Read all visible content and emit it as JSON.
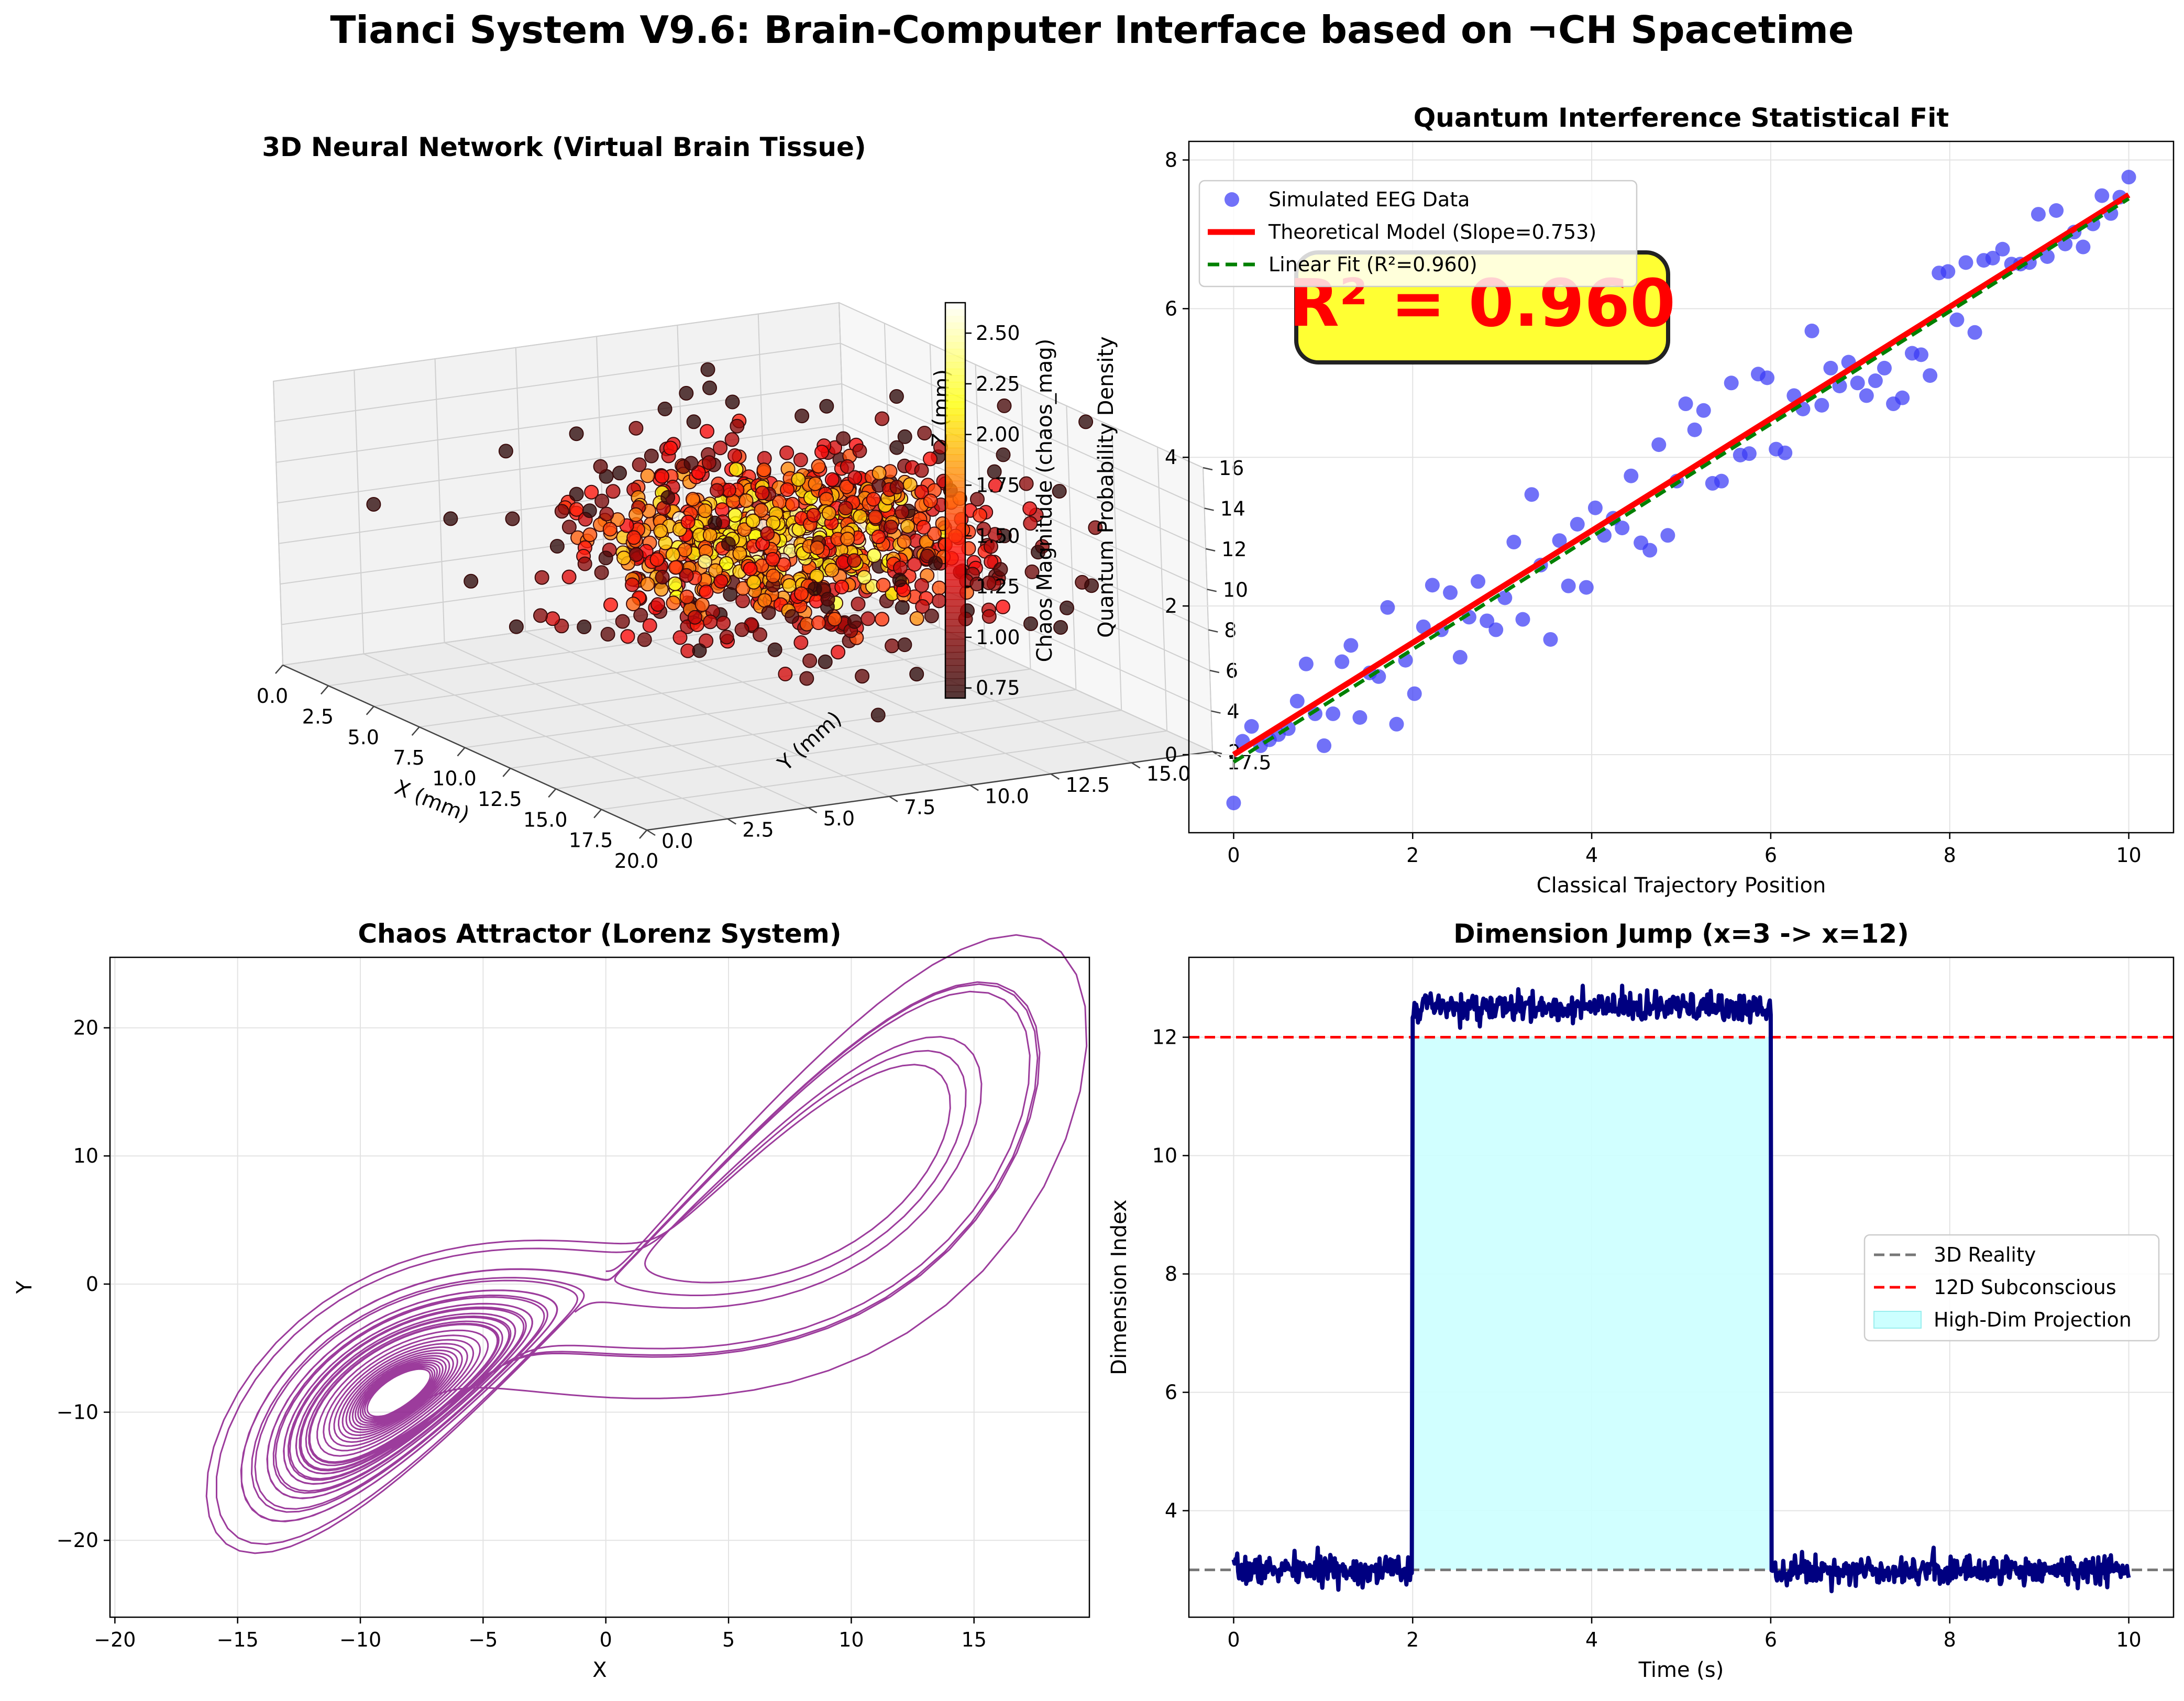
{
  "suptitle": "Tianci System V9.6: Brain-Computer Interface based on ¬CH Spacetime",
  "colors": {
    "scatter_blue": "#3a3af5",
    "fit_red": "#ff0000",
    "fit_green": "#008000",
    "lorenz_purple": "#8b1a8b",
    "signal_navy": "#000080",
    "fill_cyan": "#ccffff",
    "ref_gray": "#777777",
    "ref_red": "#ff0000",
    "badge_yellow": "#ffff33"
  },
  "chart_data": [
    {
      "id": "neural3d",
      "type": "scatter3d",
      "title": "3D Neural Network (Virtual Brain Tissue)",
      "xlabel": "X (mm)",
      "ylabel": "Y (mm)",
      "zlabel": "Z (mm)",
      "xlim": [
        0,
        20
      ],
      "ylim": [
        0,
        17.5
      ],
      "zlim": [
        2,
        16
      ],
      "xticks": [
        "0.0",
        "2.5",
        "5.0",
        "7.5",
        "10.0",
        "12.5",
        "15.0",
        "17.5",
        "20.0"
      ],
      "yticks": [
        "0.0",
        "2.5",
        "5.0",
        "7.5",
        "10.0",
        "12.5",
        "15.0",
        "17.5"
      ],
      "zticks": [
        "2",
        "4",
        "6",
        "8",
        "10",
        "12",
        "14",
        "16"
      ],
      "colorbar_label": "Chaos Magnitude (chaos_mag)",
      "colorbar_ticks": [
        "0.75",
        "1.00",
        "1.25",
        "1.50",
        "1.75",
        "2.00",
        "2.25",
        "2.50"
      ],
      "colorbar_range": [
        0.7,
        2.65
      ],
      "center": [
        10,
        10,
        10
      ],
      "spread": [
        3,
        3,
        2
      ]
    },
    {
      "id": "quantum",
      "type": "scatter",
      "title": "Quantum Interference Statistical Fit",
      "xlabel": "Classical Trajectory Position",
      "ylabel": "Quantum Probability Density",
      "xlim": [
        -0.5,
        10.5
      ],
      "ylim": [
        -1.05,
        8.25
      ],
      "xticks": [
        0,
        2,
        4,
        6,
        8,
        10
      ],
      "yticks": [
        0,
        2,
        4,
        6,
        8
      ],
      "legend": [
        "Simulated EEG Data",
        "Theoretical Model (Slope=0.753)",
        "Linear Fit (R²=0.960)"
      ],
      "annotation": "R² = 0.960",
      "theoretical": {
        "slope": 0.753,
        "intercept": 0.0
      },
      "linear_fit": {
        "slope": 0.758,
        "intercept": -0.1
      },
      "points": [
        [
          0,
          -0.65
        ],
        [
          0.1,
          0.18
        ],
        [
          0.2,
          0.38
        ],
        [
          0.3,
          0.12
        ],
        [
          0.4,
          0.2
        ],
        [
          0.5,
          0.27
        ],
        [
          0.61,
          0.35
        ],
        [
          0.71,
          0.72
        ],
        [
          0.81,
          1.22
        ],
        [
          0.91,
          0.55
        ],
        [
          1.01,
          0.12
        ],
        [
          1.11,
          0.55
        ],
        [
          1.21,
          1.25
        ],
        [
          1.31,
          1.47
        ],
        [
          1.41,
          0.5
        ],
        [
          1.52,
          1.1
        ],
        [
          1.62,
          1.05
        ],
        [
          1.72,
          1.98
        ],
        [
          1.82,
          0.41
        ],
        [
          1.92,
          1.27
        ],
        [
          2.02,
          0.82
        ],
        [
          2.12,
          1.72
        ],
        [
          2.22,
          2.28
        ],
        [
          2.32,
          1.68
        ],
        [
          2.42,
          2.18
        ],
        [
          2.53,
          1.31
        ],
        [
          2.63,
          1.85
        ],
        [
          2.73,
          2.33
        ],
        [
          2.83,
          1.8
        ],
        [
          2.93,
          1.68
        ],
        [
          3.03,
          2.11
        ],
        [
          3.13,
          2.86
        ],
        [
          3.23,
          1.82
        ],
        [
          3.33,
          3.5
        ],
        [
          3.43,
          2.55
        ],
        [
          3.54,
          1.55
        ],
        [
          3.64,
          2.88
        ],
        [
          3.74,
          2.27
        ],
        [
          3.84,
          3.1
        ],
        [
          3.94,
          2.25
        ],
        [
          4.04,
          3.32
        ],
        [
          4.14,
          2.95
        ],
        [
          4.24,
          3.18
        ],
        [
          4.34,
          3.05
        ],
        [
          4.44,
          3.75
        ],
        [
          4.55,
          2.85
        ],
        [
          4.65,
          2.75
        ],
        [
          4.75,
          4.17
        ],
        [
          4.85,
          2.95
        ],
        [
          4.95,
          3.68
        ],
        [
          5.05,
          4.72
        ],
        [
          5.15,
          4.37
        ],
        [
          5.25,
          4.63
        ],
        [
          5.35,
          3.65
        ],
        [
          5.45,
          3.68
        ],
        [
          5.56,
          5.0
        ],
        [
          5.66,
          4.03
        ],
        [
          5.76,
          4.05
        ],
        [
          5.86,
          5.12
        ],
        [
          5.96,
          5.07
        ],
        [
          6.06,
          4.11
        ],
        [
          6.16,
          4.06
        ],
        [
          6.26,
          4.83
        ],
        [
          6.36,
          4.65
        ],
        [
          6.46,
          5.7
        ],
        [
          6.57,
          4.7
        ],
        [
          6.67,
          5.2
        ],
        [
          6.77,
          4.96
        ],
        [
          6.87,
          5.28
        ],
        [
          6.97,
          5.0
        ],
        [
          7.07,
          4.83
        ],
        [
          7.17,
          5.03
        ],
        [
          7.27,
          5.2
        ],
        [
          7.37,
          4.72
        ],
        [
          7.47,
          4.8
        ],
        [
          7.58,
          5.4
        ],
        [
          7.68,
          5.38
        ],
        [
          7.78,
          5.1
        ],
        [
          7.88,
          6.48
        ],
        [
          7.98,
          6.5
        ],
        [
          8.08,
          5.85
        ],
        [
          8.18,
          6.62
        ],
        [
          8.28,
          5.68
        ],
        [
          8.38,
          6.65
        ],
        [
          8.48,
          6.68
        ],
        [
          8.59,
          6.8
        ],
        [
          8.69,
          6.6
        ],
        [
          8.79,
          6.6
        ],
        [
          8.89,
          6.62
        ],
        [
          8.99,
          7.27
        ],
        [
          9.09,
          6.7
        ],
        [
          9.19,
          7.32
        ],
        [
          9.29,
          6.87
        ],
        [
          9.39,
          7.03
        ],
        [
          9.49,
          6.83
        ],
        [
          9.6,
          7.14
        ],
        [
          9.7,
          7.52
        ],
        [
          9.8,
          7.28
        ],
        [
          9.9,
          7.5
        ],
        [
          10.0,
          7.77
        ]
      ]
    },
    {
      "id": "lorenz",
      "type": "line",
      "title": "Chaos Attractor (Lorenz System)",
      "xlabel": "X",
      "ylabel": "Y",
      "xlim": [
        -20.2,
        19.7
      ],
      "ylim": [
        -26,
        25.5
      ],
      "xticks": [
        -20,
        -15,
        -10,
        -5,
        0,
        5,
        10,
        15
      ],
      "xtick_labels": [
        "−20",
        "−15",
        "−10",
        "−5",
        "0",
        "5",
        "10",
        "15"
      ],
      "yticks": [
        -20,
        -10,
        0,
        10,
        20
      ],
      "ytick_labels": [
        "−20",
        "−10",
        "0",
        "10",
        "20"
      ],
      "system": {
        "sigma": 10,
        "rho": 28,
        "beta": 2.6667,
        "initial": [
          0,
          1,
          1.05
        ],
        "dt": 0.01,
        "steps": 3000
      }
    },
    {
      "id": "dimjump",
      "type": "line",
      "title": "Dimension Jump (x=3 -> x=12)",
      "xlabel": "Time (s)",
      "ylabel": "Dimension Index",
      "xlim": [
        -0.5,
        10.5
      ],
      "ylim": [
        2.2,
        13.35
      ],
      "xticks": [
        0,
        2,
        4,
        6,
        8,
        10
      ],
      "yticks": [
        4,
        6,
        8,
        10,
        12
      ],
      "legend": [
        "3D Reality",
        "12D Subconscious",
        "High-Dim Projection"
      ],
      "baseline": 3,
      "high_level": 12,
      "signal": {
        "low": 3,
        "high": 12.5,
        "start": 2,
        "end": 6,
        "noise": 0.15
      }
    }
  ]
}
